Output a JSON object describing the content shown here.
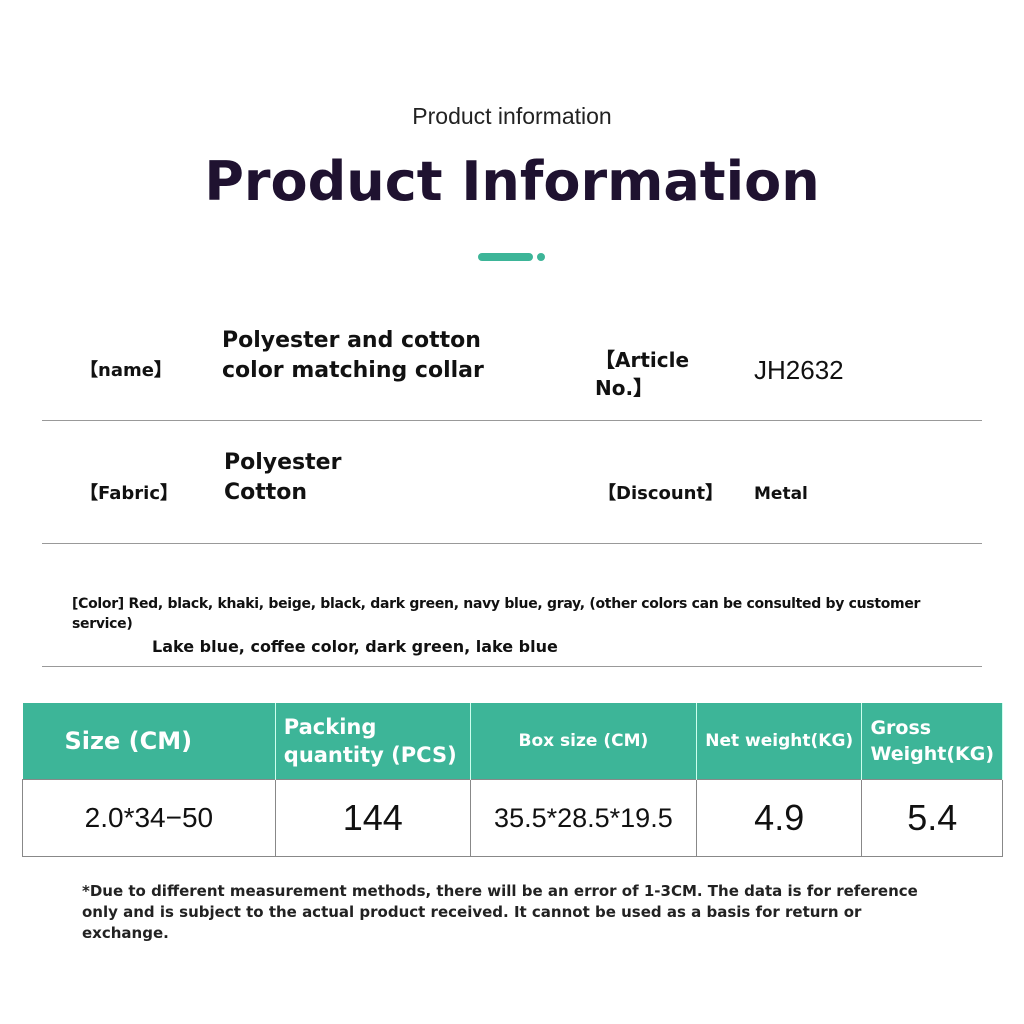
{
  "header": {
    "subtitle": "Product information",
    "title": "Product Information",
    "accent_color": "#3db598"
  },
  "rows": {
    "name_label": "【name】",
    "name_value": "Polyester and cotton color matching collar",
    "article_label": "【Article No.】",
    "article_value": "JH2632",
    "fabric_label": "【Fabric】",
    "fabric_value": "Polyester Cotton",
    "discount_label": "【Discount】",
    "discount_value": "Metal",
    "color_text": "[Color] Red, black, khaki, beige, black, dark green, navy blue, gray, (other colors can be consulted by customer service)",
    "color_extra": "Lake blue, coffee color, dark green, lake blue"
  },
  "table": {
    "headers": [
      "Size (CM)",
      "Packing quantity (PCS)",
      "Box size (CM)",
      "Net weight(KG)",
      "Gross Weight(KG)"
    ],
    "values": [
      "2.0*34−50",
      "144",
      "35.5*28.5*19.5",
      "4.9",
      "5.4"
    ]
  },
  "note": "*Due to different measurement methods, there will be an error of 1-3CM. The data is for reference only and is subject to the actual product received. It cannot be used as a basis for return or exchange."
}
